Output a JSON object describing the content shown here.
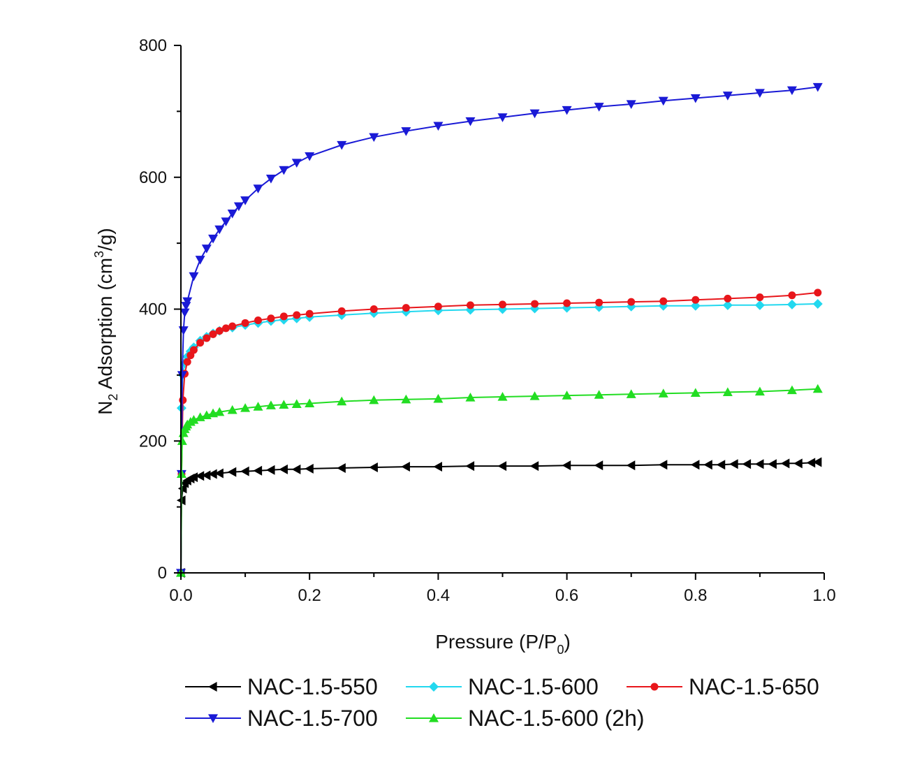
{
  "chart_data": {
    "type": "line",
    "title": "",
    "xlabel": {
      "main": "Pressure (P/P",
      "sub": "0",
      "tail": ")"
    },
    "ylabel": {
      "pre": "N",
      "sub": "2",
      "mid": " Adsorption (cm",
      "sup": "3",
      "tail": "/g)"
    },
    "xlim": [
      0.0,
      1.0
    ],
    "ylim": [
      0,
      800
    ],
    "xticks": [
      "0.0",
      "0.2",
      "0.4",
      "0.6",
      "0.8",
      "1.0"
    ],
    "yticks": [
      "0",
      "200",
      "400",
      "600",
      "800"
    ],
    "grid": false,
    "legend_position": "bottom",
    "series": [
      {
        "name": "NAC-1.5-550",
        "color": "#000000",
        "marker": "triangle-left",
        "x": [
          0.0,
          0.001,
          0.003,
          0.006,
          0.01,
          0.015,
          0.02,
          0.03,
          0.04,
          0.05,
          0.06,
          0.08,
          0.1,
          0.12,
          0.14,
          0.16,
          0.18,
          0.2,
          0.25,
          0.3,
          0.35,
          0.4,
          0.45,
          0.5,
          0.55,
          0.6,
          0.65,
          0.7,
          0.75,
          0.8,
          0.82,
          0.84,
          0.86,
          0.88,
          0.9,
          0.92,
          0.94,
          0.96,
          0.98,
          0.99
        ],
        "y": [
          0,
          110,
          128,
          136,
          140,
          143,
          145,
          147,
          148,
          150,
          151,
          153,
          154,
          155,
          156,
          157,
          157,
          158,
          159,
          160,
          161,
          161,
          162,
          162,
          162,
          163,
          163,
          163,
          164,
          164,
          164,
          164,
          165,
          165,
          165,
          165,
          166,
          166,
          167,
          168
        ]
      },
      {
        "name": "NAC-1.5-600",
        "color": "#22d8ef",
        "marker": "diamond",
        "x": [
          0.0,
          0.001,
          0.003,
          0.006,
          0.01,
          0.015,
          0.02,
          0.03,
          0.04,
          0.05,
          0.06,
          0.08,
          0.1,
          0.12,
          0.14,
          0.16,
          0.18,
          0.2,
          0.25,
          0.3,
          0.35,
          0.4,
          0.45,
          0.5,
          0.55,
          0.6,
          0.65,
          0.7,
          0.75,
          0.8,
          0.85,
          0.9,
          0.95,
          0.99
        ],
        "y": [
          0,
          250,
          300,
          318,
          328,
          336,
          342,
          352,
          358,
          363,
          367,
          372,
          376,
          379,
          382,
          384,
          386,
          388,
          391,
          394,
          396,
          398,
          399,
          400,
          401,
          402,
          403,
          404,
          405,
          405,
          406,
          406,
          407,
          408
        ]
      },
      {
        "name": "NAC-1.5-650",
        "color": "#e8161b",
        "marker": "circle",
        "x": [
          0.0,
          0.001,
          0.003,
          0.006,
          0.01,
          0.015,
          0.02,
          0.03,
          0.04,
          0.05,
          0.06,
          0.07,
          0.08,
          0.1,
          0.12,
          0.14,
          0.16,
          0.18,
          0.2,
          0.25,
          0.3,
          0.35,
          0.4,
          0.45,
          0.5,
          0.55,
          0.6,
          0.65,
          0.7,
          0.75,
          0.8,
          0.85,
          0.9,
          0.95,
          0.99
        ],
        "y": [
          0,
          150,
          262,
          302,
          320,
          330,
          338,
          349,
          356,
          362,
          367,
          371,
          374,
          379,
          383,
          386,
          389,
          391,
          393,
          397,
          400,
          402,
          404,
          406,
          407,
          408,
          409,
          410,
          411,
          412,
          414,
          416,
          418,
          421,
          425
        ]
      },
      {
        "name": "NAC-1.5-700",
        "color": "#1a1ad6",
        "marker": "triangle-down",
        "x": [
          0.0,
          0.001,
          0.002,
          0.004,
          0.006,
          0.008,
          0.01,
          0.02,
          0.03,
          0.04,
          0.05,
          0.06,
          0.07,
          0.08,
          0.09,
          0.1,
          0.12,
          0.14,
          0.16,
          0.18,
          0.2,
          0.25,
          0.3,
          0.35,
          0.4,
          0.45,
          0.5,
          0.55,
          0.6,
          0.65,
          0.7,
          0.75,
          0.8,
          0.85,
          0.9,
          0.95,
          0.99
        ],
        "y": [
          0,
          150,
          300,
          368,
          395,
          405,
          412,
          450,
          475,
          492,
          507,
          521,
          533,
          545,
          556,
          565,
          583,
          598,
          611,
          622,
          632,
          649,
          661,
          670,
          678,
          685,
          691,
          697,
          702,
          707,
          711,
          716,
          720,
          724,
          728,
          732,
          737
        ]
      },
      {
        "name": "NAC-1.5-600 (2h)",
        "color": "#22dd22",
        "marker": "triangle-up",
        "x": [
          0.0,
          0.001,
          0.002,
          0.004,
          0.006,
          0.008,
          0.01,
          0.015,
          0.02,
          0.03,
          0.04,
          0.05,
          0.06,
          0.08,
          0.1,
          0.12,
          0.14,
          0.16,
          0.18,
          0.2,
          0.25,
          0.3,
          0.35,
          0.4,
          0.45,
          0.5,
          0.55,
          0.6,
          0.65,
          0.7,
          0.75,
          0.8,
          0.85,
          0.9,
          0.95,
          0.99
        ],
        "y": [
          0,
          150,
          200,
          212,
          218,
          222,
          225,
          229,
          232,
          236,
          239,
          242,
          244,
          247,
          250,
          252,
          254,
          255,
          256,
          257,
          260,
          262,
          263,
          264,
          266,
          267,
          268,
          269,
          270,
          271,
          272,
          273,
          274,
          275,
          277,
          279
        ]
      }
    ]
  }
}
